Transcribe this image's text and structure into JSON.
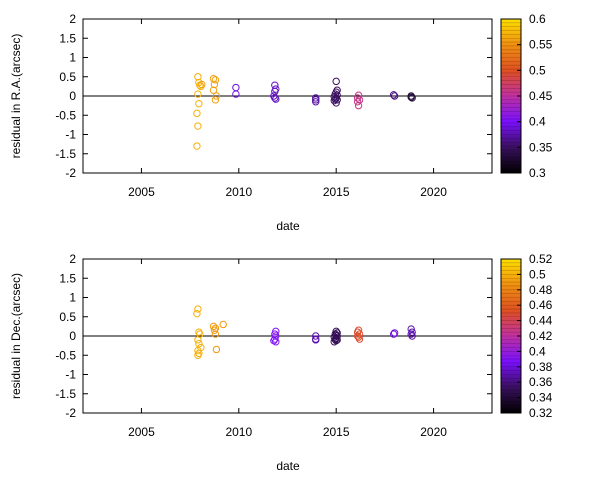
{
  "chart_data": [
    {
      "type": "scatter",
      "xlabel": "date",
      "ylabel": "residual in R.A.(arcsec)",
      "xlim": [
        2002,
        2023
      ],
      "ylim": [
        -2,
        2
      ],
      "xticks": [
        "2005",
        "2010",
        "2015",
        "2020"
      ],
      "xtick_values": [
        2005,
        2010,
        2015,
        2020
      ],
      "yticks": [
        "2",
        "1.5",
        "1",
        "0.5",
        "0",
        "-0.5",
        "-1",
        "-1.5",
        "-2"
      ],
      "ytick_values": [
        2,
        1.5,
        1,
        0.5,
        0,
        -0.5,
        -1,
        -1.5,
        -2
      ],
      "zero_line": true,
      "marker": "open-circle",
      "colorbar": {
        "range": [
          0.3,
          0.6
        ],
        "ticks": [
          "0.6",
          "0.55",
          "0.5",
          "0.45",
          "0.4",
          "0.35",
          "0.3"
        ],
        "tick_values": [
          0.6,
          0.55,
          0.5,
          0.45,
          0.4,
          0.35,
          0.3
        ],
        "palette": [
          "#000000",
          "#3a1060",
          "#7a10ff",
          "#c030a0",
          "#e05020",
          "#f09010",
          "#ffe000"
        ]
      },
      "points": [
        [
          2007.9,
          0.5,
          0.57
        ],
        [
          2007.95,
          0.35,
          0.57
        ],
        [
          2008.0,
          0.28,
          0.57
        ],
        [
          2008.05,
          0.25,
          0.57
        ],
        [
          2007.9,
          0.05,
          0.57
        ],
        [
          2007.95,
          -0.2,
          0.57
        ],
        [
          2007.85,
          -0.45,
          0.57
        ],
        [
          2007.9,
          -0.78,
          0.57
        ],
        [
          2007.85,
          -1.3,
          0.57
        ],
        [
          2008.1,
          0.3,
          0.56
        ],
        [
          2008.7,
          0.45,
          0.56
        ],
        [
          2008.8,
          0.42,
          0.56
        ],
        [
          2008.75,
          0.3,
          0.56
        ],
        [
          2008.7,
          0.15,
          0.56
        ],
        [
          2008.85,
          0.0,
          0.56
        ],
        [
          2008.8,
          -0.1,
          0.56
        ],
        [
          2009.85,
          0.22,
          0.39
        ],
        [
          2009.85,
          0.05,
          0.39
        ],
        [
          2011.85,
          0.28,
          0.38
        ],
        [
          2011.9,
          0.18,
          0.38
        ],
        [
          2011.85,
          0.12,
          0.38
        ],
        [
          2011.8,
          0.0,
          0.38
        ],
        [
          2011.85,
          -0.05,
          0.38
        ],
        [
          2011.9,
          -0.08,
          0.38
        ],
        [
          2013.95,
          -0.05,
          0.37
        ],
        [
          2013.95,
          -0.15,
          0.37
        ],
        [
          2013.95,
          -0.1,
          0.37
        ],
        [
          2015.0,
          0.38,
          0.35
        ],
        [
          2015.05,
          0.15,
          0.35
        ],
        [
          2015.0,
          0.1,
          0.35
        ],
        [
          2014.95,
          0.05,
          0.35
        ],
        [
          2015.05,
          0.02,
          0.35
        ],
        [
          2014.9,
          -0.02,
          0.35
        ],
        [
          2015.0,
          -0.05,
          0.35
        ],
        [
          2014.95,
          -0.08,
          0.35
        ],
        [
          2015.05,
          -0.1,
          0.35
        ],
        [
          2015.0,
          -0.18,
          0.35
        ],
        [
          2014.9,
          -0.12,
          0.35
        ],
        [
          2016.15,
          0.02,
          0.46
        ],
        [
          2016.1,
          -0.05,
          0.46
        ],
        [
          2016.2,
          -0.1,
          0.46
        ],
        [
          2016.1,
          -0.15,
          0.46
        ],
        [
          2016.15,
          -0.25,
          0.46
        ],
        [
          2017.95,
          0.03,
          0.36
        ],
        [
          2018.0,
          0.0,
          0.36
        ],
        [
          2018.85,
          0.0,
          0.33
        ],
        [
          2018.85,
          -0.03,
          0.33
        ],
        [
          2018.9,
          -0.05,
          0.33
        ]
      ]
    },
    {
      "type": "scatter",
      "xlabel": "date",
      "ylabel": "residual in Dec.(arcsec)",
      "xlim": [
        2002,
        2023
      ],
      "ylim": [
        -2,
        2
      ],
      "xticks": [
        "2005",
        "2010",
        "2015",
        "2020"
      ],
      "xtick_values": [
        2005,
        2010,
        2015,
        2020
      ],
      "yticks": [
        "2",
        "1.5",
        "1",
        "0.5",
        "0",
        "-0.5",
        "-1",
        "-1.5",
        "-2"
      ],
      "ytick_values": [
        2,
        1.5,
        1,
        0.5,
        0,
        -0.5,
        -1,
        -1.5,
        -2
      ],
      "zero_line": true,
      "marker": "open-circle",
      "colorbar": {
        "range": [
          0.32,
          0.52
        ],
        "ticks": [
          "0.52",
          "0.5",
          "0.48",
          "0.46",
          "0.44",
          "0.42",
          "0.4",
          "0.38",
          "0.36",
          "0.34",
          "0.32"
        ],
        "tick_values": [
          0.52,
          0.5,
          0.48,
          0.46,
          0.44,
          0.42,
          0.4,
          0.38,
          0.36,
          0.34,
          0.32
        ],
        "palette": [
          "#000000",
          "#3a1060",
          "#7a10ff",
          "#c030a0",
          "#e05020",
          "#f09010",
          "#ffe000"
        ]
      },
      "points": [
        [
          2007.9,
          0.7,
          0.5
        ],
        [
          2007.85,
          0.58,
          0.5
        ],
        [
          2007.95,
          0.1,
          0.5
        ],
        [
          2008.0,
          0.05,
          0.5
        ],
        [
          2007.9,
          -0.1,
          0.5
        ],
        [
          2007.95,
          -0.2,
          0.5
        ],
        [
          2008.05,
          -0.3,
          0.5
        ],
        [
          2007.9,
          -0.38,
          0.5
        ],
        [
          2007.95,
          -0.45,
          0.5
        ],
        [
          2007.9,
          -0.5,
          0.5
        ],
        [
          2008.7,
          0.25,
          0.49
        ],
        [
          2008.8,
          0.2,
          0.49
        ],
        [
          2008.75,
          0.15,
          0.49
        ],
        [
          2008.8,
          0.05,
          0.49
        ],
        [
          2008.85,
          -0.35,
          0.49
        ],
        [
          2009.2,
          0.3,
          0.49
        ],
        [
          2011.9,
          0.12,
          0.39
        ],
        [
          2011.85,
          0.05,
          0.39
        ],
        [
          2011.9,
          0.0,
          0.39
        ],
        [
          2011.85,
          -0.08,
          0.39
        ],
        [
          2011.8,
          -0.12,
          0.39
        ],
        [
          2011.9,
          -0.15,
          0.39
        ],
        [
          2013.95,
          0.0,
          0.37
        ],
        [
          2013.95,
          -0.08,
          0.37
        ],
        [
          2013.95,
          -0.1,
          0.37
        ],
        [
          2015.0,
          0.12,
          0.35
        ],
        [
          2015.05,
          0.08,
          0.35
        ],
        [
          2014.95,
          0.05,
          0.35
        ],
        [
          2015.0,
          0.02,
          0.35
        ],
        [
          2015.05,
          0.0,
          0.35
        ],
        [
          2014.9,
          -0.03,
          0.35
        ],
        [
          2015.0,
          -0.06,
          0.35
        ],
        [
          2014.95,
          -0.09,
          0.35
        ],
        [
          2015.05,
          -0.1,
          0.35
        ],
        [
          2015.0,
          -0.12,
          0.35
        ],
        [
          2014.9,
          -0.15,
          0.35
        ],
        [
          2016.15,
          0.15,
          0.45
        ],
        [
          2016.1,
          0.1,
          0.45
        ],
        [
          2016.2,
          0.05,
          0.45
        ],
        [
          2016.1,
          0.0,
          0.45
        ],
        [
          2016.15,
          -0.03,
          0.45
        ],
        [
          2016.2,
          -0.08,
          0.45
        ],
        [
          2017.95,
          0.05,
          0.38
        ],
        [
          2018.0,
          0.08,
          0.38
        ],
        [
          2018.85,
          0.18,
          0.37
        ],
        [
          2018.9,
          0.1,
          0.37
        ],
        [
          2018.85,
          0.05,
          0.37
        ],
        [
          2018.9,
          0.0,
          0.37
        ]
      ]
    }
  ]
}
